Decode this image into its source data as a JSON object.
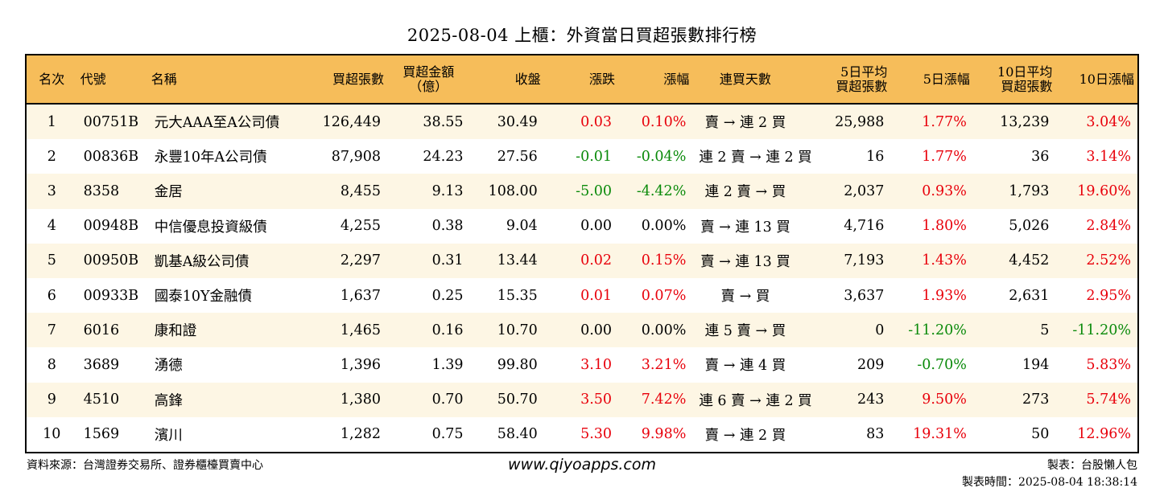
{
  "title": "2025-08-04 上櫃：外資當日買超張數排行榜",
  "table": {
    "headers": {
      "rank": "名次",
      "code": "代號",
      "name": "名稱",
      "buy_lots": "買超張數",
      "buy_amount_1": "買超金額",
      "buy_amount_2": "（億）",
      "close": "收盤",
      "change": "漲跌",
      "change_pct": "漲幅",
      "streak": "連買天數",
      "avg5_1": "5日平均",
      "avg5_2": "買超張數",
      "pct5": "5日漲幅",
      "avg10_1": "10日平均",
      "avg10_2": "買超張數",
      "pct10": "10日漲幅"
    },
    "rows": [
      {
        "rank": "1",
        "code": "00751B",
        "name": "元大AAA至A公司債",
        "buy_lots": "126,449",
        "buy_amount": "38.55",
        "close": "30.49",
        "change": "0.03",
        "change_pct": "0.10%",
        "change_color": "red",
        "streak": "賣 → 連 2 買",
        "avg5": "25,988",
        "pct5": "1.77%",
        "pct5_color": "red",
        "avg10": "13,239",
        "pct10": "3.04%",
        "pct10_color": "red"
      },
      {
        "rank": "2",
        "code": "00836B",
        "name": "永豐10年A公司債",
        "buy_lots": "87,908",
        "buy_amount": "24.23",
        "close": "27.56",
        "change": "-0.01",
        "change_pct": "-0.04%",
        "change_color": "green",
        "streak": "連 2 賣 → 連 2 買",
        "avg5": "16",
        "pct5": "1.77%",
        "pct5_color": "red",
        "avg10": "36",
        "pct10": "3.14%",
        "pct10_color": "red"
      },
      {
        "rank": "3",
        "code": "8358",
        "name": "金居",
        "buy_lots": "8,455",
        "buy_amount": "9.13",
        "close": "108.00",
        "change": "-5.00",
        "change_pct": "-4.42%",
        "change_color": "green",
        "streak": "連 2 賣 → 買",
        "avg5": "2,037",
        "pct5": "0.93%",
        "pct5_color": "red",
        "avg10": "1,793",
        "pct10": "19.60%",
        "pct10_color": "red"
      },
      {
        "rank": "4",
        "code": "00948B",
        "name": "中信優息投資級債",
        "buy_lots": "4,255",
        "buy_amount": "0.38",
        "close": "9.04",
        "change": "0.00",
        "change_pct": "0.00%",
        "change_color": "black",
        "streak": "賣 → 連 13 買",
        "avg5": "4,716",
        "pct5": "1.80%",
        "pct5_color": "red",
        "avg10": "5,026",
        "pct10": "2.84%",
        "pct10_color": "red"
      },
      {
        "rank": "5",
        "code": "00950B",
        "name": "凱基A級公司債",
        "buy_lots": "2,297",
        "buy_amount": "0.31",
        "close": "13.44",
        "change": "0.02",
        "change_pct": "0.15%",
        "change_color": "red",
        "streak": "賣 → 連 13 買",
        "avg5": "7,193",
        "pct5": "1.43%",
        "pct5_color": "red",
        "avg10": "4,452",
        "pct10": "2.52%",
        "pct10_color": "red"
      },
      {
        "rank": "6",
        "code": "00933B",
        "name": "國泰10Y金融債",
        "buy_lots": "1,637",
        "buy_amount": "0.25",
        "close": "15.35",
        "change": "0.01",
        "change_pct": "0.07%",
        "change_color": "red",
        "streak": "賣 → 買",
        "avg5": "3,637",
        "pct5": "1.93%",
        "pct5_color": "red",
        "avg10": "2,631",
        "pct10": "2.95%",
        "pct10_color": "red"
      },
      {
        "rank": "7",
        "code": "6016",
        "name": "康和證",
        "buy_lots": "1,465",
        "buy_amount": "0.16",
        "close": "10.70",
        "change": "0.00",
        "change_pct": "0.00%",
        "change_color": "black",
        "streak": "連 5 賣 → 買",
        "avg5": "0",
        "pct5": "-11.20%",
        "pct5_color": "green",
        "avg10": "5",
        "pct10": "-11.20%",
        "pct10_color": "green"
      },
      {
        "rank": "8",
        "code": "3689",
        "name": "湧德",
        "buy_lots": "1,396",
        "buy_amount": "1.39",
        "close": "99.80",
        "change": "3.10",
        "change_pct": "3.21%",
        "change_color": "red",
        "streak": "賣 → 連 4 買",
        "avg5": "209",
        "pct5": "-0.70%",
        "pct5_color": "green",
        "avg10": "194",
        "pct10": "5.83%",
        "pct10_color": "red"
      },
      {
        "rank": "9",
        "code": "4510",
        "name": "高鋒",
        "buy_lots": "1,380",
        "buy_amount": "0.70",
        "close": "50.70",
        "change": "3.50",
        "change_pct": "7.42%",
        "change_color": "red",
        "streak": "連 6 賣 → 連 2 買",
        "avg5": "243",
        "pct5": "9.50%",
        "pct5_color": "red",
        "avg10": "273",
        "pct10": "5.74%",
        "pct10_color": "red"
      },
      {
        "rank": "10",
        "code": "1569",
        "name": "濱川",
        "buy_lots": "1,282",
        "buy_amount": "0.75",
        "close": "58.40",
        "change": "5.30",
        "change_pct": "9.98%",
        "change_color": "red",
        "streak": "賣 → 連 2 買",
        "avg5": "83",
        "pct5": "19.31%",
        "pct5_color": "red",
        "avg10": "50",
        "pct10": "12.96%",
        "pct10_color": "red"
      }
    ]
  },
  "footer": {
    "source": "資料來源：台灣證券交易所、證券櫃檯買賣中心",
    "website": "www.qiyoapps.com",
    "maker": "製表：台股懶人包",
    "made_time": "製表時間：2025-08-04 18:38:14"
  }
}
